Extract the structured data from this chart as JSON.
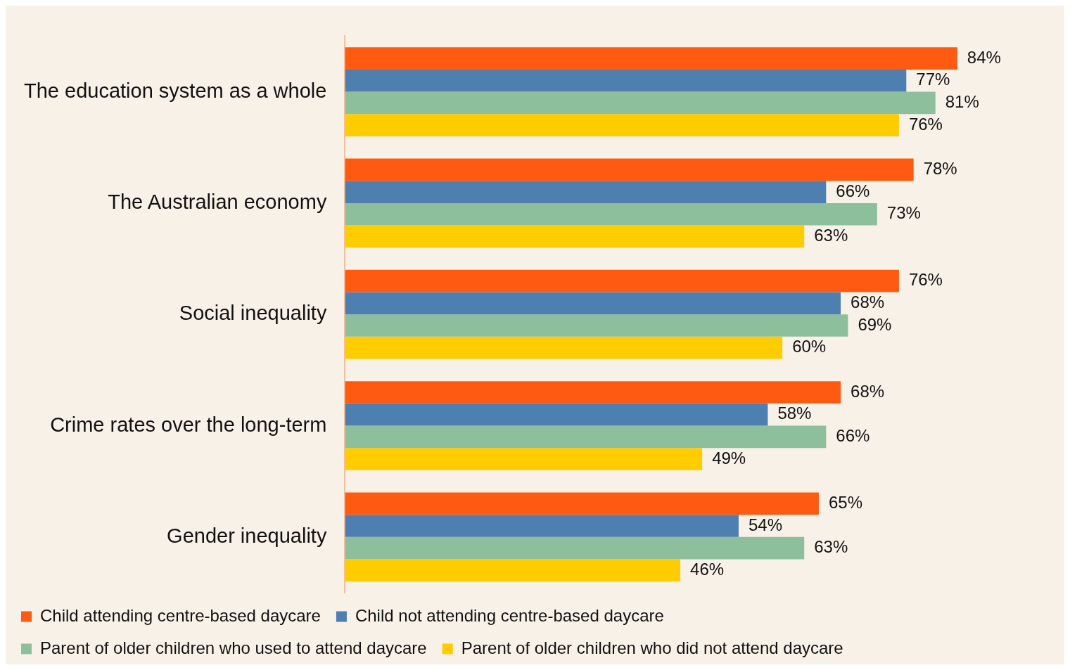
{
  "chart_data": {
    "type": "bar",
    "orientation": "horizontal",
    "categories": [
      "The education system as a whole",
      "The Australian economy",
      "Social inequality",
      "Crime rates over the long-term",
      "Gender inequality"
    ],
    "series": [
      {
        "name": "Child attending centre-based daycare",
        "color": "#ff5a12",
        "values": [
          84,
          78,
          76,
          68,
          65
        ],
        "value_labels": [
          "84%",
          "78%",
          "76%",
          "68%",
          "65%"
        ]
      },
      {
        "name": "Child not attending centre-based daycare",
        "color": "#4d7fb0",
        "values": [
          77,
          66,
          68,
          58,
          54
        ],
        "value_labels": [
          "77%",
          "66%",
          "68%",
          "58%",
          "54%"
        ]
      },
      {
        "name": "Parent of older children who used to attend daycare",
        "color": "#8ebf9c",
        "values": [
          81,
          73,
          69,
          66,
          63
        ],
        "value_labels": [
          "81%",
          "73%",
          "69%",
          "66%",
          "63%"
        ]
      },
      {
        "name": "Parent of older children who did not attend daycare",
        "color": "#ffcc00",
        "values": [
          76,
          63,
          60,
          49,
          46
        ],
        "value_labels": [
          "76%",
          "63%",
          "60%",
          "49%",
          "46%"
        ]
      }
    ],
    "grid": false,
    "legend": "bottom"
  }
}
